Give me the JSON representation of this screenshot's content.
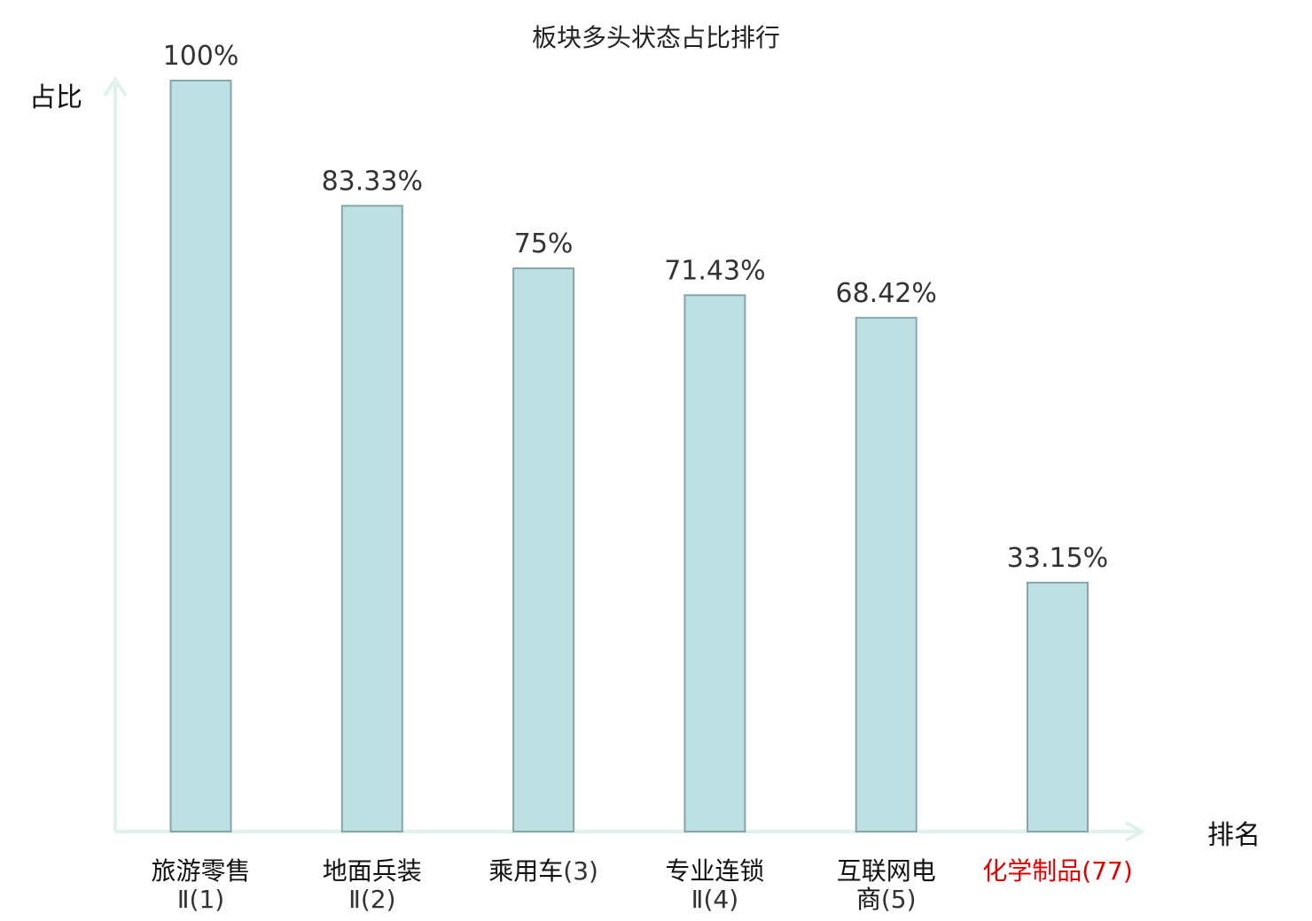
{
  "chart_data": {
    "type": "bar",
    "title": "板块多头状态占比排行",
    "ylabel": "占比",
    "xlabel": "排名",
    "ylim": [
      0,
      100
    ],
    "grid": false,
    "legend": "none",
    "value_suffix": "%",
    "categories": [
      {
        "name_lines": [
          "旅游零售"
        ],
        "rank": "Ⅱ(1)"
      },
      {
        "name_lines": [
          "地面兵装"
        ],
        "rank": "Ⅱ(2)"
      },
      {
        "name_lines": [
          "乘用车"
        ],
        "rank": "(3)"
      },
      {
        "name_lines": [
          "专业连锁"
        ],
        "rank": "Ⅱ(4)"
      },
      {
        "name_lines": [
          "互联网电",
          "商"
        ],
        "rank": "(5)"
      },
      {
        "name_lines": [
          "化学制品"
        ],
        "rank": "(77)",
        "highlight": true
      }
    ],
    "values": [
      100,
      83.33,
      75,
      71.43,
      68.42,
      33.15
    ],
    "value_labels": [
      "100%",
      "83.33%",
      "75%",
      "71.43%",
      "68.42%",
      "33.15%"
    ],
    "colors": {
      "bar_fill": "#bde0e3",
      "bar_stroke": "#86a6aa",
      "axis": "#e0f1ee",
      "highlight_text": "#e00000",
      "text": "#111111"
    }
  }
}
